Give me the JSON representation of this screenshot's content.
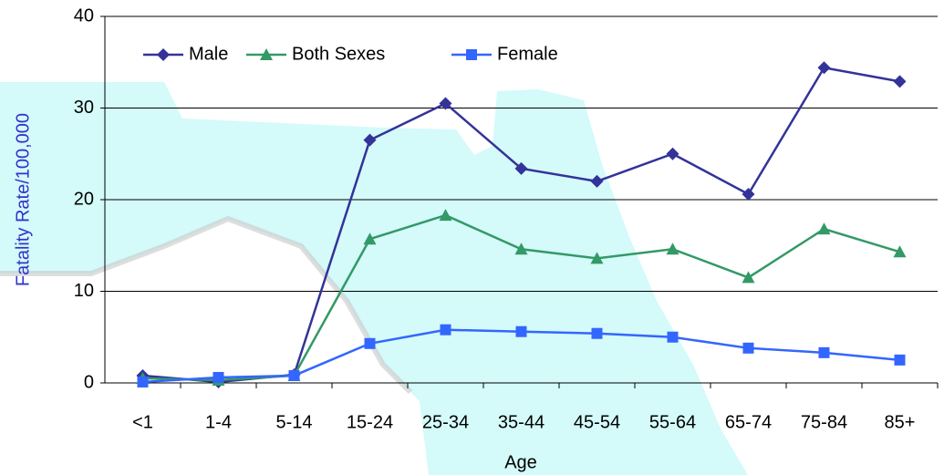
{
  "chart_data": {
    "type": "line",
    "x_label": "Age",
    "y_label": "Fatality Rate/100,000",
    "categories": [
      "<1",
      "1-4",
      "5-14",
      "15-24",
      "25-34",
      "35-44",
      "45-54",
      "55-64",
      "65-74",
      "75-84",
      "85+"
    ],
    "series": [
      {
        "name": "Male",
        "color": "#333399",
        "marker": "diamond",
        "values": [
          0.8,
          0.1,
          0.9,
          26.5,
          30.5,
          23.4,
          22.0,
          25.0,
          20.6,
          34.4,
          32.9
        ]
      },
      {
        "name": "Both Sexes",
        "color": "#339966",
        "marker": "triangle",
        "values": [
          0.5,
          0.3,
          0.8,
          15.7,
          18.3,
          14.6,
          13.6,
          14.6,
          11.5,
          16.8,
          14.3
        ]
      },
      {
        "name": "Female",
        "color": "#3366ff",
        "marker": "square",
        "values": [
          0.1,
          0.6,
          0.8,
          4.3,
          5.8,
          5.6,
          5.4,
          5.0,
          3.8,
          3.3,
          2.5
        ]
      }
    ],
    "ylim": [
      0,
      40
    ],
    "yticks": [
      0,
      10,
      20,
      30,
      40
    ],
    "grid": true
  }
}
